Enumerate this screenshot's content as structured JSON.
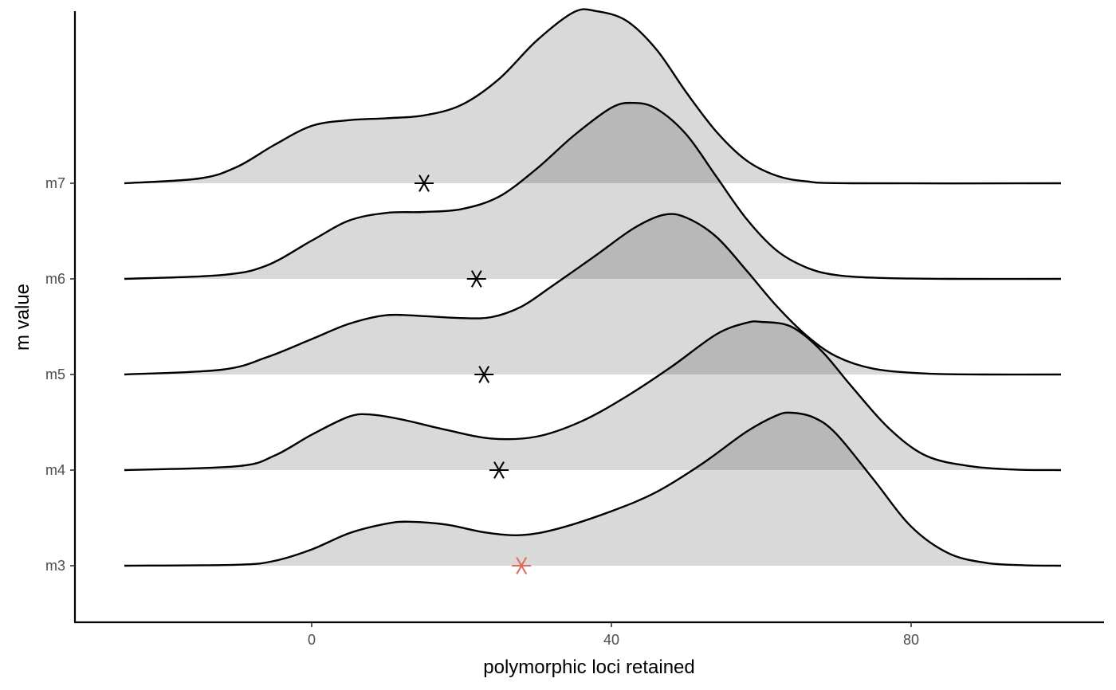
{
  "chart_data": {
    "type": "ridgeline",
    "xlabel": "polymorphic loci retained",
    "ylabel": "m value",
    "xlim": [
      -25,
      100
    ],
    "x_ticks": [
      0,
      40,
      80
    ],
    "x_tick_labels": [
      "0",
      "40",
      "80"
    ],
    "categories": [
      "m3",
      "m4",
      "m5",
      "m6",
      "m7"
    ],
    "grid": false,
    "legend": "none",
    "fill_color": "#000000",
    "fill_opacity": 0.15,
    "line_color": "#000000",
    "series": [
      {
        "category": "m3",
        "density": [
          [
            -25,
            0.0
          ],
          [
            -10,
            0.01
          ],
          [
            -5,
            0.05
          ],
          [
            0,
            0.17
          ],
          [
            5,
            0.34
          ],
          [
            10,
            0.44
          ],
          [
            13,
            0.46
          ],
          [
            18,
            0.43
          ],
          [
            23,
            0.35
          ],
          [
            28,
            0.32
          ],
          [
            33,
            0.39
          ],
          [
            40,
            0.57
          ],
          [
            46,
            0.77
          ],
          [
            52,
            1.06
          ],
          [
            58,
            1.4
          ],
          [
            62,
            1.57
          ],
          [
            64,
            1.6
          ],
          [
            67,
            1.55
          ],
          [
            70,
            1.38
          ],
          [
            75,
            0.9
          ],
          [
            80,
            0.41
          ],
          [
            85,
            0.13
          ],
          [
            90,
            0.03
          ],
          [
            95,
            0.005
          ],
          [
            100,
            0.0
          ]
        ],
        "marker": {
          "x": 28,
          "color": "#e06b5d"
        }
      },
      {
        "category": "m4",
        "density": [
          [
            -25,
            0.0
          ],
          [
            -10,
            0.04
          ],
          [
            -5,
            0.15
          ],
          [
            0,
            0.37
          ],
          [
            5,
            0.56
          ],
          [
            8,
            0.58
          ],
          [
            12,
            0.53
          ],
          [
            18,
            0.42
          ],
          [
            24,
            0.33
          ],
          [
            30,
            0.35
          ],
          [
            36,
            0.51
          ],
          [
            42,
            0.77
          ],
          [
            48,
            1.08
          ],
          [
            54,
            1.42
          ],
          [
            58,
            1.54
          ],
          [
            60,
            1.55
          ],
          [
            64,
            1.5
          ],
          [
            68,
            1.25
          ],
          [
            72,
            0.88
          ],
          [
            77,
            0.44
          ],
          [
            82,
            0.15
          ],
          [
            88,
            0.04
          ],
          [
            94,
            0.005
          ],
          [
            100,
            0.0
          ]
        ],
        "marker": {
          "x": 25,
          "color": "#000000"
        }
      },
      {
        "category": "m5",
        "density": [
          [
            -25,
            0.0
          ],
          [
            -12,
            0.05
          ],
          [
            -6,
            0.18
          ],
          [
            0,
            0.37
          ],
          [
            5,
            0.53
          ],
          [
            10,
            0.62
          ],
          [
            15,
            0.61
          ],
          [
            20,
            0.59
          ],
          [
            24,
            0.6
          ],
          [
            28,
            0.71
          ],
          [
            32,
            0.92
          ],
          [
            38,
            1.25
          ],
          [
            43,
            1.53
          ],
          [
            47,
            1.67
          ],
          [
            50,
            1.64
          ],
          [
            54,
            1.44
          ],
          [
            58,
            1.09
          ],
          [
            62,
            0.72
          ],
          [
            66,
            0.41
          ],
          [
            70,
            0.19
          ],
          [
            75,
            0.06
          ],
          [
            82,
            0.01
          ],
          [
            90,
            0.0
          ],
          [
            100,
            0.0
          ]
        ],
        "marker": {
          "x": 23,
          "color": "#000000"
        }
      },
      {
        "category": "m6",
        "density": [
          [
            -25,
            0.0
          ],
          [
            -12,
            0.04
          ],
          [
            -6,
            0.14
          ],
          [
            0,
            0.4
          ],
          [
            5,
            0.61
          ],
          [
            10,
            0.69
          ],
          [
            15,
            0.7
          ],
          [
            20,
            0.73
          ],
          [
            25,
            0.86
          ],
          [
            30,
            1.15
          ],
          [
            35,
            1.5
          ],
          [
            40,
            1.79
          ],
          [
            43,
            1.84
          ],
          [
            46,
            1.78
          ],
          [
            50,
            1.51
          ],
          [
            54,
            1.07
          ],
          [
            58,
            0.63
          ],
          [
            62,
            0.3
          ],
          [
            66,
            0.12
          ],
          [
            70,
            0.04
          ],
          [
            76,
            0.01
          ],
          [
            85,
            0.0
          ],
          [
            100,
            0.0
          ]
        ],
        "marker": {
          "x": 22,
          "color": "#000000"
        }
      },
      {
        "category": "m7",
        "density": [
          [
            -25,
            0.0
          ],
          [
            -15,
            0.05
          ],
          [
            -10,
            0.17
          ],
          [
            -5,
            0.4
          ],
          [
            0,
            0.6
          ],
          [
            5,
            0.66
          ],
          [
            10,
            0.68
          ],
          [
            15,
            0.71
          ],
          [
            20,
            0.82
          ],
          [
            25,
            1.09
          ],
          [
            30,
            1.49
          ],
          [
            35,
            1.79
          ],
          [
            38,
            1.8
          ],
          [
            42,
            1.7
          ],
          [
            46,
            1.4
          ],
          [
            50,
            0.95
          ],
          [
            54,
            0.54
          ],
          [
            58,
            0.24
          ],
          [
            62,
            0.08
          ],
          [
            66,
            0.02
          ],
          [
            72,
            0.0
          ],
          [
            100,
            0.0
          ]
        ],
        "marker": {
          "x": 15,
          "color": "#000000"
        }
      }
    ]
  }
}
